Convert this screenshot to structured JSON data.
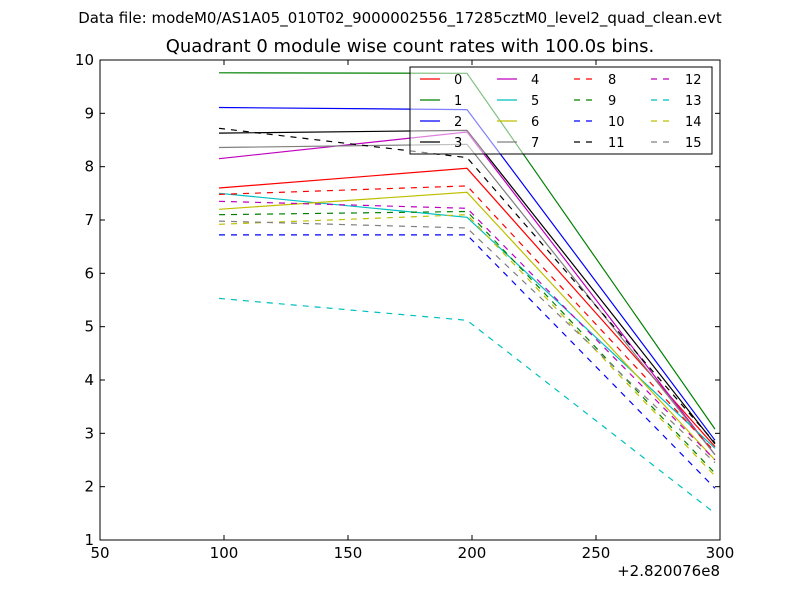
{
  "suptitle": "Data file: modeM0/AS1A05_010T02_9000002556_17285cztM0_level2_quad_clean.evt",
  "chart_data": {
    "type": "line",
    "title": "Quadrant 0 module wise count rates with 100.0s bins.",
    "xlabel": "",
    "ylabel": "",
    "x_offset_label": "+2.820076e8",
    "xlim": [
      50,
      300
    ],
    "ylim": [
      1,
      10
    ],
    "xticks": [
      "50",
      "100",
      "150",
      "200",
      "250",
      "300"
    ],
    "yticks": [
      "1",
      "2",
      "3",
      "4",
      "5",
      "6",
      "7",
      "8",
      "9",
      "10"
    ],
    "x": [
      98,
      198,
      298
    ],
    "legend_position": "top-right",
    "series": [
      {
        "name": "0",
        "color": "#ff0000",
        "style": "solid",
        "values": [
          7.6,
          7.97,
          2.75
        ]
      },
      {
        "name": "1",
        "color": "#008000",
        "style": "solid",
        "values": [
          9.76,
          9.75,
          3.08
        ]
      },
      {
        "name": "2",
        "color": "#0000ff",
        "style": "solid",
        "values": [
          9.11,
          9.07,
          2.87
        ]
      },
      {
        "name": "3",
        "color": "#000000",
        "style": "solid",
        "values": [
          8.63,
          8.68,
          2.8
        ]
      },
      {
        "name": "4",
        "color": "#bf00bf",
        "style": "solid",
        "values": [
          8.15,
          8.65,
          2.6
        ]
      },
      {
        "name": "5",
        "color": "#00bfbf",
        "style": "solid",
        "values": [
          7.5,
          7.05,
          2.72
        ]
      },
      {
        "name": "6",
        "color": "#bfbf00",
        "style": "solid",
        "values": [
          7.2,
          7.52,
          2.5
        ]
      },
      {
        "name": "7",
        "color": "#808080",
        "style": "solid",
        "values": [
          8.36,
          8.42,
          2.6
        ]
      },
      {
        "name": "8",
        "color": "#ff0000",
        "style": "dashed",
        "values": [
          7.48,
          7.64,
          2.65
        ]
      },
      {
        "name": "9",
        "color": "#008000",
        "style": "dashed",
        "values": [
          7.1,
          7.16,
          2.25
        ]
      },
      {
        "name": "10",
        "color": "#0000ff",
        "style": "dashed",
        "values": [
          6.72,
          6.72,
          1.97
        ]
      },
      {
        "name": "11",
        "color": "#000000",
        "style": "dashed",
        "values": [
          8.72,
          8.17,
          2.82
        ]
      },
      {
        "name": "12",
        "color": "#bf00bf",
        "style": "dashed",
        "values": [
          7.35,
          7.22,
          2.5
        ]
      },
      {
        "name": "13",
        "color": "#00bfbf",
        "style": "dashed",
        "values": [
          5.53,
          5.12,
          1.5
        ]
      },
      {
        "name": "14",
        "color": "#bfbf00",
        "style": "dashed",
        "values": [
          6.92,
          7.1,
          2.2
        ]
      },
      {
        "name": "15",
        "color": "#808080",
        "style": "dashed",
        "values": [
          6.98,
          6.85,
          2.45
        ]
      }
    ]
  }
}
